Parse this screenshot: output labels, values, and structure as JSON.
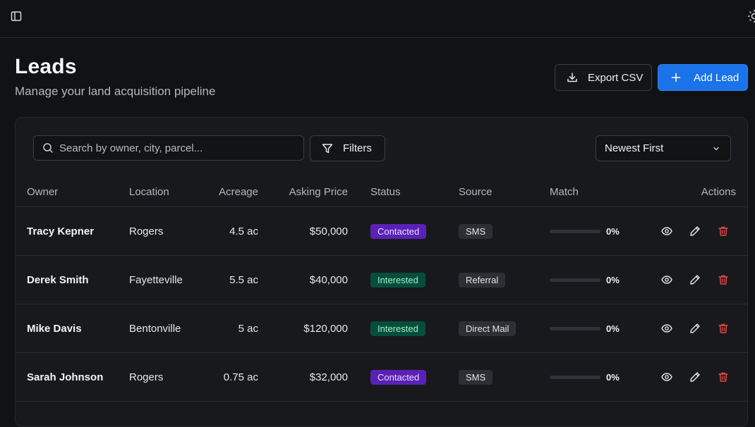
{
  "header": {
    "title": "Leads",
    "subtitle": "Manage your land acquisition pipeline"
  },
  "actions": {
    "export_label": "Export CSV",
    "add_label": "Add Lead"
  },
  "toolbar": {
    "search_placeholder": "Search by owner, city, parcel...",
    "filters_label": "Filters",
    "sort_value": "Newest First"
  },
  "table": {
    "columns": [
      "Owner",
      "Location",
      "Acreage",
      "Asking Price",
      "Status",
      "Source",
      "Match",
      "Actions"
    ],
    "rows": [
      {
        "owner": "Tracy Kepner",
        "location": "Rogers",
        "acreage": "4.5 ac",
        "price": "$50,000",
        "status": "Contacted",
        "status_kind": "contacted",
        "source": "SMS",
        "match": "0%",
        "match_value": 0
      },
      {
        "owner": "Derek Smith",
        "location": "Fayetteville",
        "acreage": "5.5 ac",
        "price": "$40,000",
        "status": "Interested",
        "status_kind": "interested",
        "source": "Referral",
        "match": "0%",
        "match_value": 0
      },
      {
        "owner": "Mike Davis",
        "location": "Bentonville",
        "acreage": "5 ac",
        "price": "$120,000",
        "status": "Interested",
        "status_kind": "interested",
        "source": "Direct Mail",
        "match": "0%",
        "match_value": 0
      },
      {
        "owner": "Sarah Johnson",
        "location": "Rogers",
        "acreage": "0.75 ac",
        "price": "$32,000",
        "status": "Contacted",
        "status_kind": "contacted",
        "source": "SMS",
        "match": "0%",
        "match_value": 0
      }
    ]
  },
  "icons": {
    "sidebar": "sidebar-toggle-icon",
    "theme": "sun-icon",
    "export": "download-icon",
    "add": "plus-icon",
    "search": "search-icon",
    "filter": "filter-icon",
    "sort": "chevron-down-icon",
    "view": "eye-icon",
    "edit": "pencil-icon",
    "delete": "trash-icon"
  },
  "colors": {
    "accent": "#1a73e8",
    "contacted": "#5b21b6",
    "interested": "#064e3b",
    "danger": "#e5484d"
  }
}
